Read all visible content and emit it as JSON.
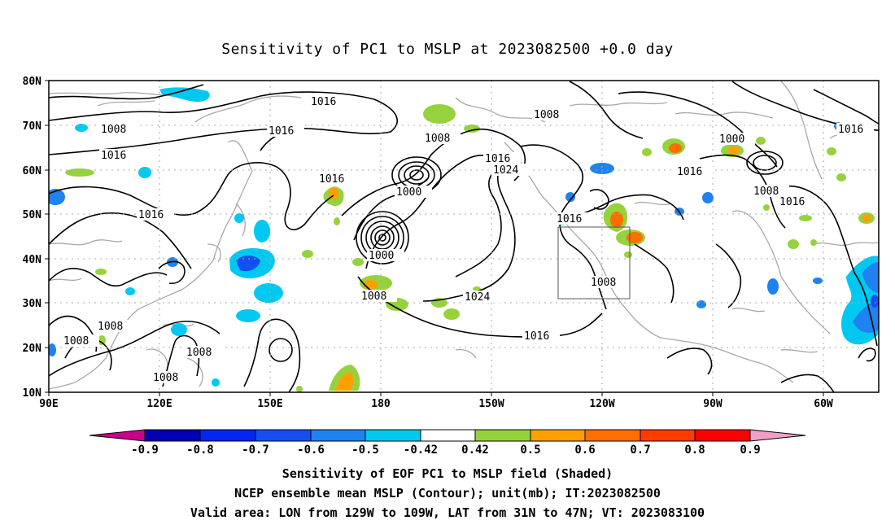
{
  "title": "Sensitivity of PC1 to MSLP at 2023082500 +0.0 day",
  "lat_labels": [
    "80N",
    "70N",
    "60N",
    "50N",
    "40N",
    "30N",
    "20N",
    "10N"
  ],
  "lon_labels": [
    "90E",
    "120E",
    "150E",
    "180",
    "150W",
    "120W",
    "90W",
    "60W"
  ],
  "contour_labels": [
    {
      "id": "c1",
      "text": "1016"
    },
    {
      "id": "c2",
      "text": "1008"
    },
    {
      "id": "c3",
      "text": "1016"
    },
    {
      "id": "c4",
      "text": "1016"
    },
    {
      "id": "c5",
      "text": "1016"
    },
    {
      "id": "c6",
      "text": "1016"
    },
    {
      "id": "c7",
      "text": "1008"
    },
    {
      "id": "c8",
      "text": "1000"
    },
    {
      "id": "c9",
      "text": "1000"
    },
    {
      "id": "c10",
      "text": "1008"
    },
    {
      "id": "c11",
      "text": "1024"
    },
    {
      "id": "c12",
      "text": "1016"
    },
    {
      "id": "c13",
      "text": "1024"
    },
    {
      "id": "c14",
      "text": "1016"
    },
    {
      "id": "c15",
      "text": "1008"
    },
    {
      "id": "c16",
      "text": "1000"
    },
    {
      "id": "c17",
      "text": "1016"
    },
    {
      "id": "c18",
      "text": "1008"
    },
    {
      "id": "c19",
      "text": "1016"
    },
    {
      "id": "c20",
      "text": "1016"
    },
    {
      "id": "c21",
      "text": "1008"
    },
    {
      "id": "c22",
      "text": "1008"
    },
    {
      "id": "c23",
      "text": "1008"
    },
    {
      "id": "c24",
      "text": "1008"
    },
    {
      "id": "c25",
      "text": "1016"
    },
    {
      "id": "c26",
      "text": "1008"
    }
  ],
  "colorbar": {
    "tick_labels": [
      "-0.9",
      "-0.8",
      "-0.7",
      "-0.6",
      "-0.5",
      "-0.42",
      "0.42",
      "0.5",
      "0.6",
      "0.7",
      "0.8",
      "0.9"
    ],
    "colors": [
      "#c8008c",
      "#0000b4",
      "#0028f0",
      "#1450f0",
      "#1e82f0",
      "#00c8f0",
      "#ffffff",
      "#96d23c",
      "#ffa000",
      "#ff6e00",
      "#ff3c00",
      "#ff0000",
      "#f0a0c8"
    ]
  },
  "footer": {
    "line1": "Sensitivity of EOF PC1 to MSLP field (Shaded)",
    "line2": "NCEP ensemble mean MSLP (Contour); unit(mb); IT:2023082500",
    "line3": "Valid area: LON from 129W to 109W, LAT from 31N to 47N; VT: 2023083100"
  }
}
